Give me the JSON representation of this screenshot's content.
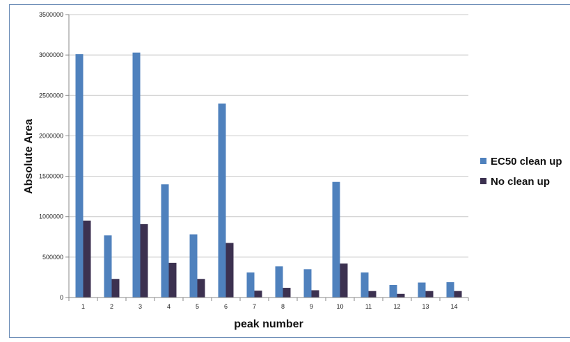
{
  "chart_data": {
    "type": "bar",
    "title": "",
    "xlabel": "peak number",
    "ylabel": "Absolute Area",
    "ylim": [
      0,
      3500000
    ],
    "yticks": [
      "0",
      "500000",
      "1000000",
      "1500000",
      "2000000",
      "2500000",
      "3000000",
      "3500000"
    ],
    "grid": true,
    "legend_position": "right",
    "categories": [
      "1",
      "2",
      "3",
      "4",
      "5",
      "6",
      "7",
      "8",
      "9",
      "10",
      "11",
      "12",
      "13",
      "14"
    ],
    "series": [
      {
        "name": "EC50 clean up",
        "color": "#4f81bd",
        "values": [
          3010000,
          770000,
          3030000,
          1400000,
          780000,
          2400000,
          310000,
          385000,
          350000,
          1430000,
          310000,
          155000,
          185000,
          190000
        ]
      },
      {
        "name": "No clean up",
        "color": "#3c3150",
        "values": [
          950000,
          230000,
          910000,
          430000,
          230000,
          675000,
          85000,
          120000,
          90000,
          420000,
          80000,
          45000,
          80000,
          80000
        ]
      }
    ]
  }
}
